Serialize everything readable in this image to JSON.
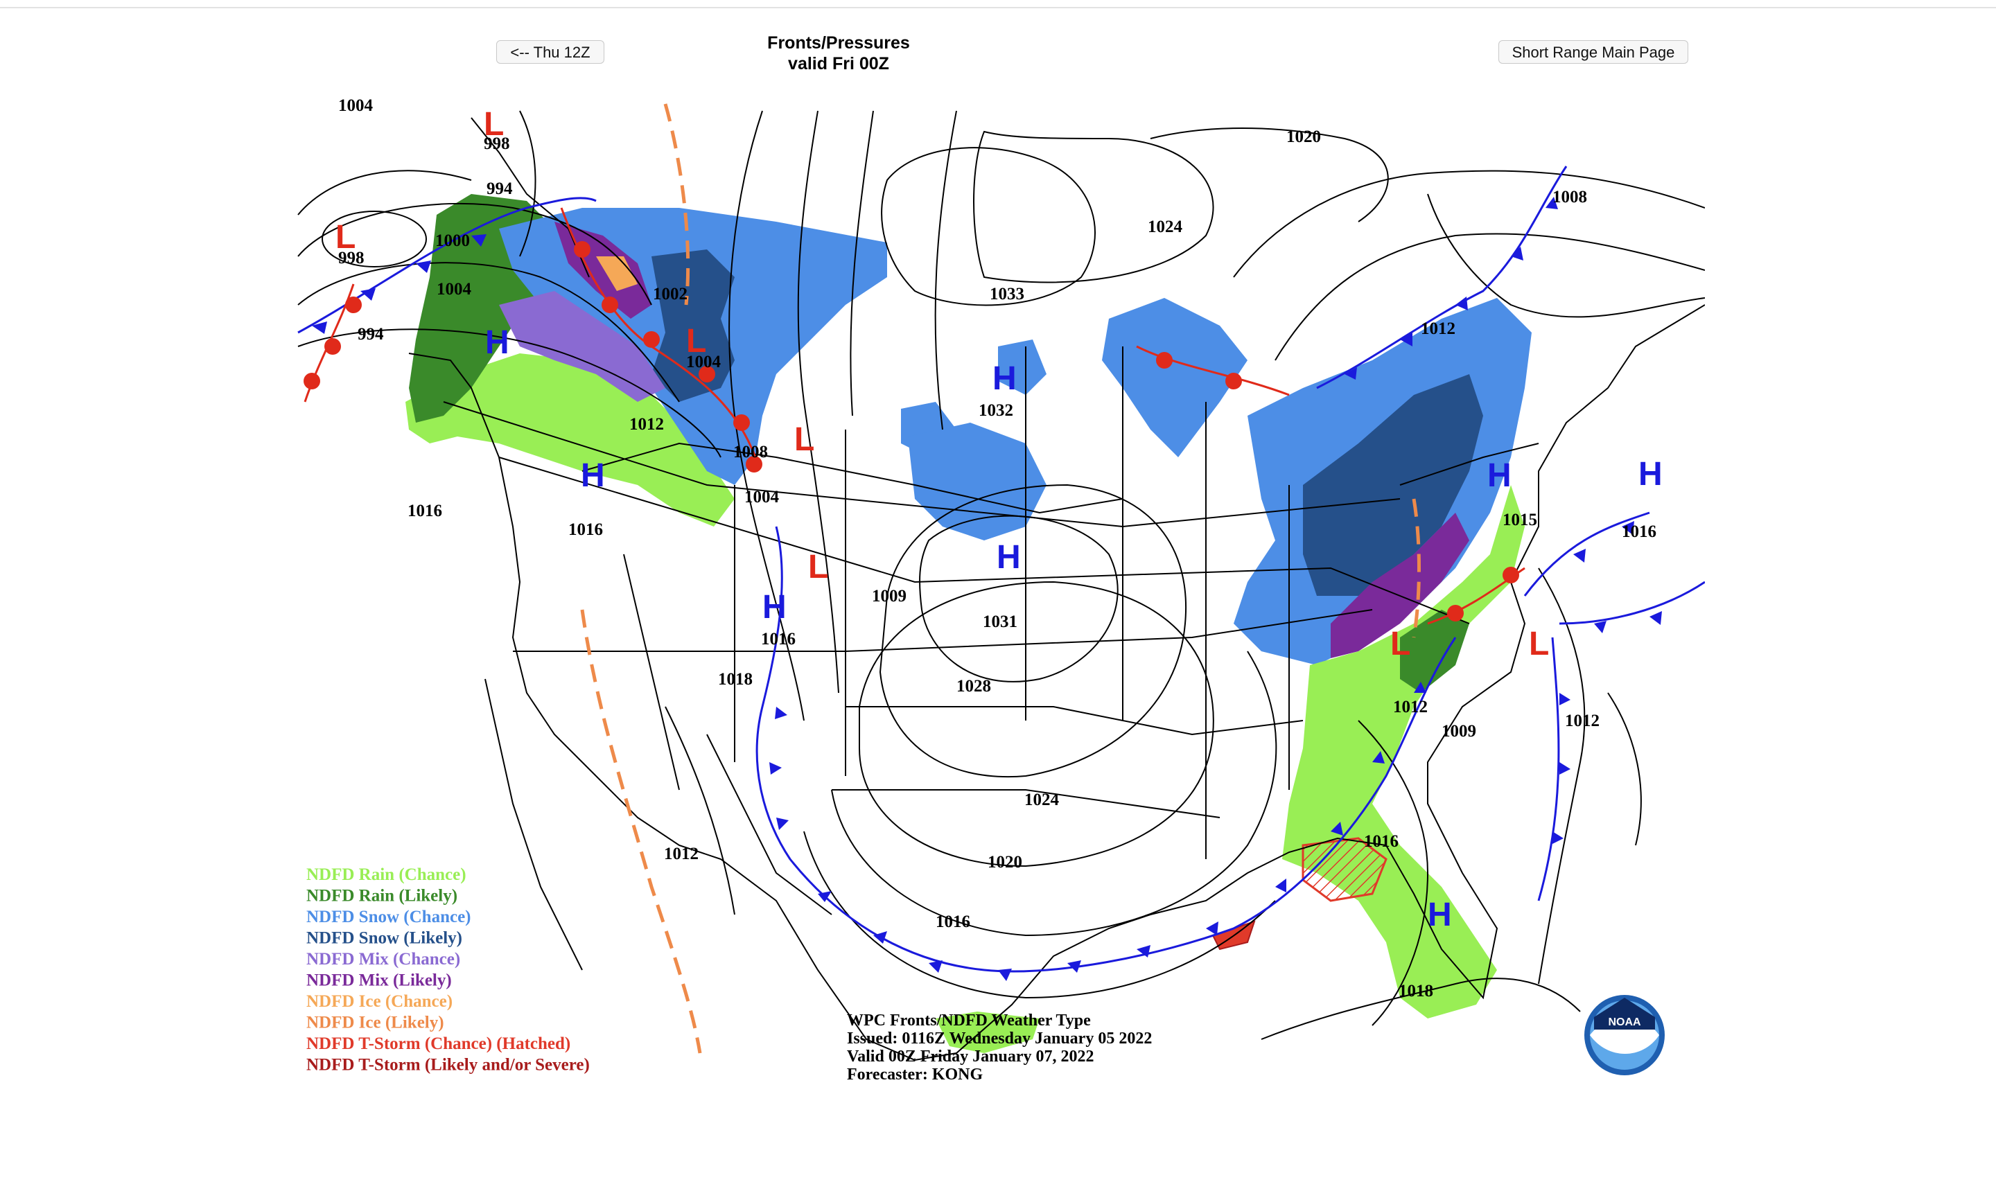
{
  "nav": {
    "prev_label": "<-- Thu 12Z",
    "main_label": "Short Range Main Page"
  },
  "title": {
    "line1": "Fronts/Pressures",
    "line2": "valid Fri 00Z"
  },
  "colors": {
    "rain_chance": "#99ee55",
    "rain_likely": "#3a8a2a",
    "snow_chance": "#4d8ee6",
    "snow_likely": "#25508a",
    "mix_chance": "#8a6ad2",
    "mix_likely": "#7a2a9a",
    "ice_chance": "#f5a857",
    "ice_likely": "#ee8a4a",
    "tstorm_chance": "#e03a2a",
    "tstorm_likely": "#a81c1c",
    "high": "#1a1adc",
    "low": "#e02a1a",
    "cold_front": "#1a1adc",
    "warm_front": "#e02a1a"
  },
  "legend": [
    {
      "label": "NDFD Rain (Chance)",
      "color": "#99ee55"
    },
    {
      "label": "NDFD Rain (Likely)",
      "color": "#3a8a2a"
    },
    {
      "label": "NDFD Snow (Chance)",
      "color": "#4d8ee6"
    },
    {
      "label": "NDFD Snow (Likely)",
      "color": "#25508a"
    },
    {
      "label": "NDFD Mix (Chance)",
      "color": "#8a6ad2"
    },
    {
      "label": "NDFD Mix (Likely)",
      "color": "#7a2a9a"
    },
    {
      "label": "NDFD Ice (Chance)",
      "color": "#f5a857"
    },
    {
      "label": "NDFD Ice (Likely)",
      "color": "#ee8a4a"
    },
    {
      "label": "NDFD T-Storm (Chance) (Hatched)",
      "color": "#e03a2a"
    },
    {
      "label": "NDFD T-Storm (Likely and/or Severe)",
      "color": "#a81c1c"
    }
  ],
  "info": {
    "line1": "WPC Fronts/NDFD Weather Type",
    "line2": "Issued: 0116Z Wednesday January 05 2022",
    "line3": "Valid 00Z Friday January 07, 2022",
    "line4": "Forecaster: KONG"
  },
  "logo": {
    "text": "NOAA"
  },
  "pressure_labels": [
    "1004",
    "998",
    "994",
    "1000",
    "998",
    "1004",
    "994",
    "1002",
    "1004",
    "1012",
    "1008",
    "1004",
    "1016",
    "1016",
    "1016",
    "1009",
    "1033",
    "1032",
    "1031",
    "1028",
    "1024",
    "1020",
    "1016",
    "1018",
    "1012",
    "1024",
    "1020",
    "1012",
    "1008",
    "1015",
    "1016",
    "1012",
    "1009",
    "1012",
    "1016",
    "1018"
  ],
  "centers": [
    "L",
    "L",
    "L",
    "L",
    "L",
    "L",
    "L",
    "H",
    "H",
    "H",
    "H",
    "H",
    "H",
    "H",
    "H"
  ]
}
